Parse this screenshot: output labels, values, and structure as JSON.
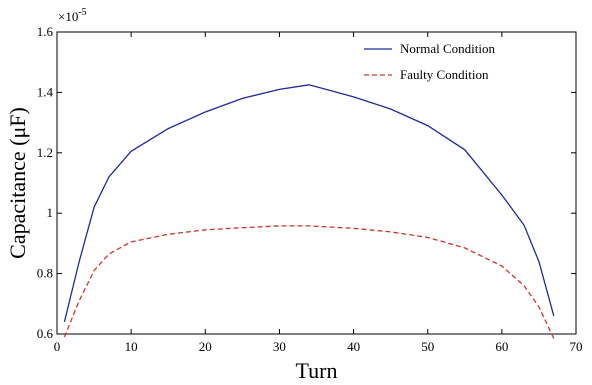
{
  "chart_data": {
    "type": "line",
    "title": "",
    "xlabel": "Turn",
    "ylabel": "Capacitance (μF)",
    "y_multiplier_label": "×10",
    "y_multiplier_exponent": "-5",
    "xlim": [
      0,
      70
    ],
    "ylim": [
      0.6,
      1.6
    ],
    "x_ticks": [
      0,
      10,
      20,
      30,
      40,
      50,
      60,
      70
    ],
    "y_ticks": [
      0.6,
      0.8,
      1,
      1.2,
      1.4,
      1.6
    ],
    "y_tick_labels": [
      "0.6",
      "0.8",
      "1",
      "1.2",
      "1.4",
      "1.6"
    ],
    "grid": false,
    "legend_position": "top-right",
    "series": [
      {
        "name": "Normal Condition",
        "color": "#1f2a99",
        "style": "solid",
        "x": [
          1,
          3,
          5,
          7,
          10,
          15,
          20,
          25,
          30,
          34,
          40,
          45,
          50,
          55,
          60,
          63,
          65,
          67
        ],
        "y": [
          0.64,
          0.84,
          1.02,
          1.12,
          1.205,
          1.28,
          1.335,
          1.38,
          1.41,
          1.425,
          1.385,
          1.345,
          1.29,
          1.21,
          1.06,
          0.96,
          0.84,
          0.66
        ]
      },
      {
        "name": "Faulty Condition",
        "color": "#c8382f",
        "style": "dashed",
        "x": [
          1,
          3,
          5,
          7,
          10,
          15,
          20,
          25,
          30,
          34,
          40,
          45,
          50,
          55,
          60,
          63,
          65,
          67
        ],
        "y": [
          0.59,
          0.71,
          0.81,
          0.865,
          0.905,
          0.93,
          0.945,
          0.952,
          0.958,
          0.958,
          0.95,
          0.938,
          0.92,
          0.885,
          0.825,
          0.76,
          0.69,
          0.585
        ]
      }
    ]
  }
}
